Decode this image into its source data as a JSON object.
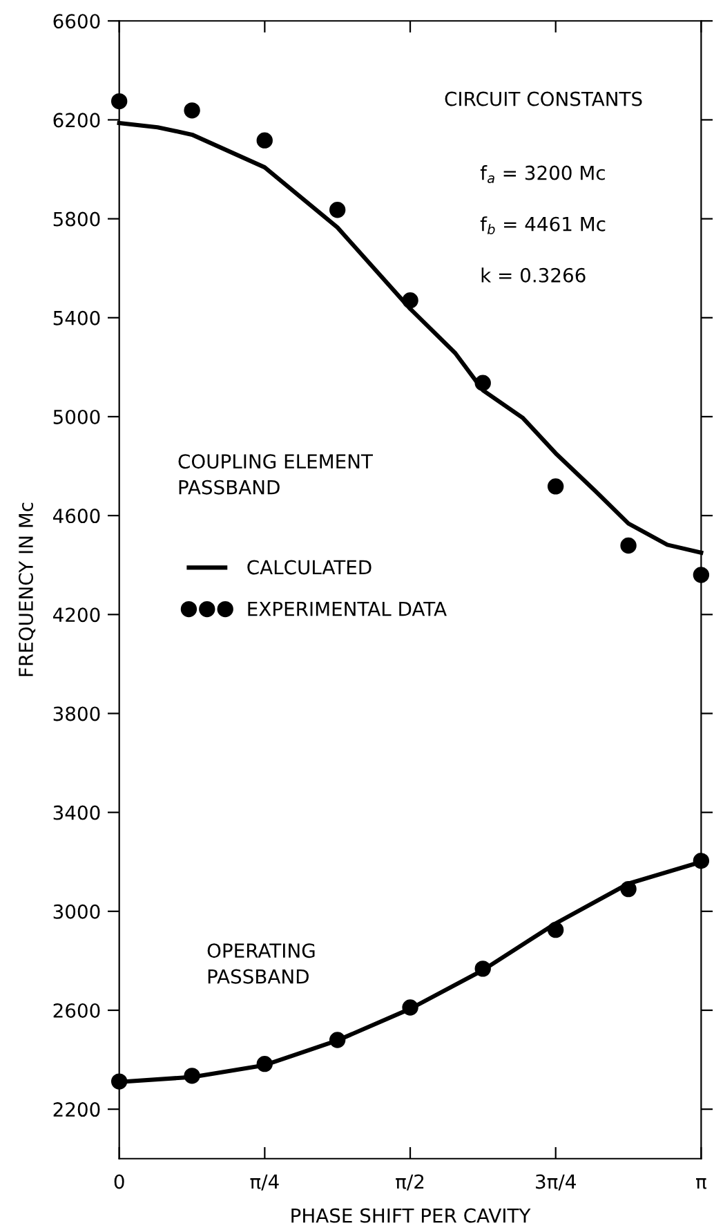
{
  "chart_data": {
    "type": "line",
    "xlabel": "PHASE SHIFT PER CAVITY",
    "ylabel": "FREQUENCY IN Mc",
    "xlim": [
      0,
      3.1416
    ],
    "ylim": [
      2000,
      6600
    ],
    "xticks": [
      {
        "value": 0,
        "label": "0"
      },
      {
        "value": 0.7854,
        "label": "π/4"
      },
      {
        "value": 1.5708,
        "label": "π/2"
      },
      {
        "value": 2.3562,
        "label": "3π/4"
      },
      {
        "value": 3.1416,
        "label": "π"
      }
    ],
    "yticks": [
      2200,
      2600,
      3000,
      3400,
      3800,
      4200,
      4600,
      5000,
      5400,
      5800,
      6200,
      6600
    ],
    "grid": false,
    "legend": "center left",
    "series": [
      {
        "name": "CALCULATED",
        "color": "#000000",
        "marker": "none",
        "line_style": "solid",
        "x": [
          0,
          0.207,
          0.393,
          0.785,
          1.178,
          1.571,
          1.814,
          1.963,
          2.18,
          2.356,
          2.569,
          2.749,
          2.959,
          3.1416
        ],
        "values": [
          6187,
          6170,
          6140,
          6008,
          5765,
          5436,
          5257,
          5107,
          4994,
          4852,
          4700,
          4568,
          4482,
          4450
        ]
      },
      {
        "name": "EXPERIMENTAL DATA",
        "type": "scatter",
        "color": "#000000",
        "marker": "circle",
        "x": [
          0,
          0.393,
          0.785,
          1.178,
          1.571,
          1.963,
          2.356,
          2.749,
          3.1416
        ],
        "values": [
          6275,
          6238,
          6117,
          5836,
          5470,
          5136,
          4718,
          4479,
          4360
        ]
      },
      {
        "color": "#000000",
        "marker": "none",
        "line_style": "solid",
        "x": [
          0,
          0.393,
          0.785,
          1.178,
          1.571,
          1.963,
          2.356,
          2.749,
          3.1416
        ],
        "values": [
          2310,
          2330,
          2378,
          2478,
          2606,
          2762,
          2951,
          3112,
          3200
        ]
      },
      {
        "type": "scatter",
        "color": "#000000",
        "marker": "circle",
        "x": [
          0,
          0.393,
          0.785,
          1.178,
          1.571,
          1.963,
          2.356,
          2.749,
          3.1416
        ],
        "values": [
          2312,
          2335,
          2383,
          2480,
          2611,
          2768,
          2925,
          3090,
          3204
        ]
      }
    ],
    "annotations": [
      "CIRCUIT CONSTANTS",
      "f$_{a}$ = 3200 Mc",
      "f$_{b}$ = 4461 Mc",
      "k = 0.3266",
      "COUPLING ELEMENT\nPASSBAND",
      "OPERATING\nPASSBAND"
    ]
  }
}
